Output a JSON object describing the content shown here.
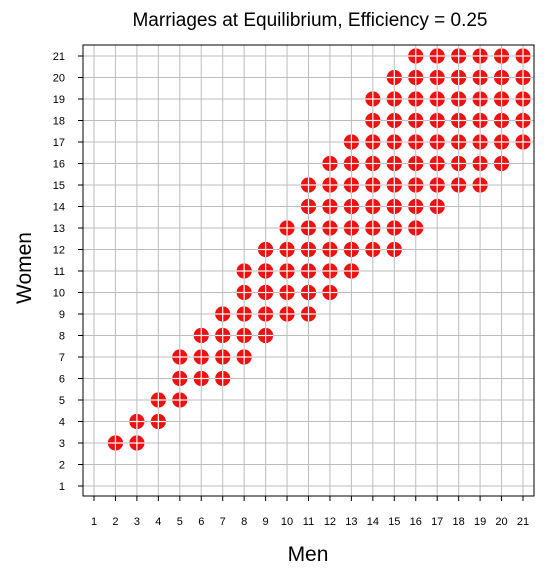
{
  "chart_data": {
    "type": "scatter",
    "title": "Marriages at Equilibrium, Efficiency = 0.25",
    "xlabel": "Men",
    "ylabel": "Women",
    "xlim": [
      1,
      21
    ],
    "ylim": [
      1,
      21
    ],
    "xticks": [
      1,
      2,
      3,
      4,
      5,
      6,
      7,
      8,
      9,
      10,
      11,
      12,
      13,
      14,
      15,
      16,
      17,
      18,
      19,
      20,
      21
    ],
    "yticks": [
      1,
      2,
      3,
      4,
      5,
      6,
      7,
      8,
      9,
      10,
      11,
      12,
      13,
      14,
      15,
      16,
      17,
      18,
      19,
      20,
      21
    ],
    "grid": true,
    "marker_color": "#ee1111",
    "marker_cross_color": "#ffffff",
    "points": [
      [
        2,
        3
      ],
      [
        3,
        3
      ],
      [
        3,
        4
      ],
      [
        4,
        4
      ],
      [
        4,
        5
      ],
      [
        5,
        5
      ],
      [
        5,
        6
      ],
      [
        6,
        6
      ],
      [
        7,
        6
      ],
      [
        5,
        7
      ],
      [
        6,
        7
      ],
      [
        7,
        7
      ],
      [
        8,
        7
      ],
      [
        6,
        8
      ],
      [
        7,
        8
      ],
      [
        8,
        8
      ],
      [
        9,
        8
      ],
      [
        7,
        9
      ],
      [
        8,
        9
      ],
      [
        9,
        9
      ],
      [
        10,
        9
      ],
      [
        11,
        9
      ],
      [
        8,
        10
      ],
      [
        9,
        10
      ],
      [
        10,
        10
      ],
      [
        11,
        10
      ],
      [
        12,
        10
      ],
      [
        8,
        11
      ],
      [
        9,
        11
      ],
      [
        10,
        11
      ],
      [
        11,
        11
      ],
      [
        12,
        11
      ],
      [
        13,
        11
      ],
      [
        9,
        12
      ],
      [
        10,
        12
      ],
      [
        11,
        12
      ],
      [
        12,
        12
      ],
      [
        13,
        12
      ],
      [
        14,
        12
      ],
      [
        15,
        12
      ],
      [
        10,
        13
      ],
      [
        11,
        13
      ],
      [
        12,
        13
      ],
      [
        13,
        13
      ],
      [
        14,
        13
      ],
      [
        15,
        13
      ],
      [
        16,
        13
      ],
      [
        11,
        14
      ],
      [
        12,
        14
      ],
      [
        13,
        14
      ],
      [
        14,
        14
      ],
      [
        15,
        14
      ],
      [
        16,
        14
      ],
      [
        17,
        14
      ],
      [
        11,
        15
      ],
      [
        12,
        15
      ],
      [
        13,
        15
      ],
      [
        14,
        15
      ],
      [
        15,
        15
      ],
      [
        16,
        15
      ],
      [
        17,
        15
      ],
      [
        18,
        15
      ],
      [
        19,
        15
      ],
      [
        12,
        16
      ],
      [
        13,
        16
      ],
      [
        14,
        16
      ],
      [
        15,
        16
      ],
      [
        16,
        16
      ],
      [
        17,
        16
      ],
      [
        18,
        16
      ],
      [
        19,
        16
      ],
      [
        20,
        16
      ],
      [
        13,
        17
      ],
      [
        14,
        17
      ],
      [
        15,
        17
      ],
      [
        16,
        17
      ],
      [
        17,
        17
      ],
      [
        18,
        17
      ],
      [
        19,
        17
      ],
      [
        20,
        17
      ],
      [
        21,
        17
      ],
      [
        14,
        18
      ],
      [
        15,
        18
      ],
      [
        16,
        18
      ],
      [
        17,
        18
      ],
      [
        18,
        18
      ],
      [
        19,
        18
      ],
      [
        20,
        18
      ],
      [
        21,
        18
      ],
      [
        14,
        19
      ],
      [
        15,
        19
      ],
      [
        16,
        19
      ],
      [
        17,
        19
      ],
      [
        18,
        19
      ],
      [
        19,
        19
      ],
      [
        20,
        19
      ],
      [
        21,
        19
      ],
      [
        15,
        20
      ],
      [
        16,
        20
      ],
      [
        17,
        20
      ],
      [
        18,
        20
      ],
      [
        19,
        20
      ],
      [
        20,
        20
      ],
      [
        21,
        20
      ],
      [
        16,
        21
      ],
      [
        17,
        21
      ],
      [
        18,
        21
      ],
      [
        19,
        21
      ],
      [
        20,
        21
      ],
      [
        21,
        21
      ]
    ]
  }
}
